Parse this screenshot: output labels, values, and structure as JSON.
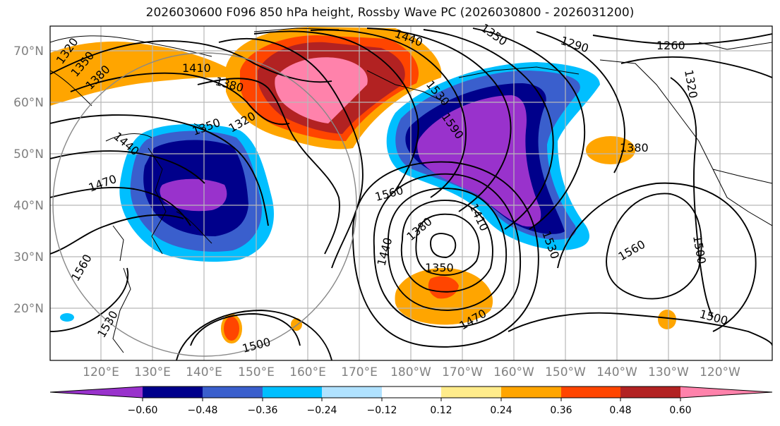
{
  "title": "2026030600 F096 850 hPa height, Rossby Wave PC (2026030800 - 2026031200)",
  "map": {
    "lat_labels": [
      "70°N",
      "60°N",
      "50°N",
      "40°N",
      "30°N",
      "20°N"
    ],
    "lon_labels": [
      "120°E",
      "130°E",
      "140°E",
      "150°E",
      "160°E",
      "170°E",
      "180°W",
      "170°W",
      "160°W",
      "150°W",
      "140°W",
      "130°W",
      "120°W"
    ],
    "contour_labels": [
      "1320",
      "1350",
      "1380",
      "1410",
      "1380",
      "1440",
      "1350",
      "1290",
      "1260",
      "1320",
      "1350",
      "1320",
      "1440",
      "1470",
      "1530",
      "1590",
      "1380",
      "1560",
      "1410",
      "1380",
      "1440",
      "1350",
      "1530",
      "1560",
      "1500",
      "1560",
      "1500",
      "1470",
      "1500",
      "1530"
    ]
  },
  "colorbar": {
    "tick_labels": [
      "−0.60",
      "−0.48",
      "−0.36",
      "−0.24",
      "−0.12",
      "0.12",
      "0.24",
      "0.36",
      "0.48",
      "0.60"
    ],
    "colors": [
      "#9932cc",
      "#00008b",
      "#3a5fcd",
      "#00bfff",
      "#b0e2ff",
      "#ffffff",
      "#ffec8b",
      "#ffa500",
      "#ff4500",
      "#b22222",
      "#ff82ab"
    ]
  }
}
